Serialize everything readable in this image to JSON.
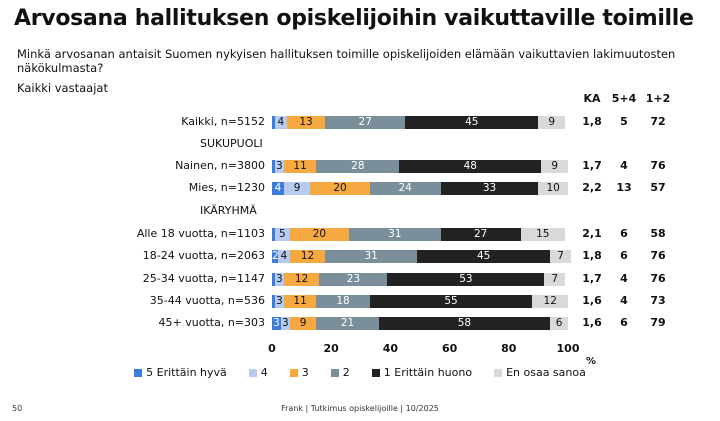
{
  "title": "Arvosana hallituksen opiskelijoihin vaikuttaville toimille",
  "subtitle": "Minkä arvosanan antaisit Suomen nykyisen hallituksen toimille opiskelijoiden elämään vaikuttavien lakimuutosten näkökulmasta?",
  "scope": "Kaikki vastaajat",
  "footer": {
    "page": "50",
    "source": "Frank | Tutkimus opiskelijoille | 10/2025"
  },
  "chart_data": {
    "type": "bar",
    "orientation": "horizontal-stacked-100",
    "xlabel": "%",
    "xlim": [
      0,
      100
    ],
    "xticks": [
      "0",
      "20",
      "40",
      "60",
      "80",
      "100"
    ],
    "stat_headers": [
      "KA",
      "5+4",
      "1+2"
    ],
    "series": [
      {
        "name": "5 Erittäin hyvä",
        "color": "#3b7ddd"
      },
      {
        "name": "4",
        "color": "#b6cbef"
      },
      {
        "name": "3",
        "color": "#f7a941"
      },
      {
        "name": "2",
        "color": "#7a8f99"
      },
      {
        "name": "1 Erittäin huono",
        "color": "#222222"
      },
      {
        "name": "En osaa sanoa",
        "color": "#d9d9d9"
      }
    ],
    "rows": [
      {
        "label": "Kaikki, n=5152",
        "values": [
          1,
          4,
          13,
          27,
          45,
          9
        ],
        "stats": [
          "1,8",
          "5",
          "72"
        ]
      },
      {
        "group": "SUKUPUOLI"
      },
      {
        "label": "Nainen, n=3800",
        "values": [
          1,
          3,
          11,
          28,
          48,
          9
        ],
        "stats": [
          "1,7",
          "4",
          "76"
        ]
      },
      {
        "label": "Mies, n=1230",
        "values": [
          4,
          9,
          20,
          24,
          33,
          10
        ],
        "stats": [
          "2,2",
          "13",
          "57"
        ]
      },
      {
        "group": "IKÄRYHMÄ"
      },
      {
        "label": "Alle 18 vuotta, n=1103",
        "values": [
          1,
          5,
          20,
          31,
          27,
          15
        ],
        "stats": [
          "2,1",
          "6",
          "58"
        ]
      },
      {
        "label": "18-24 vuotta, n=2063",
        "values": [
          2,
          4,
          12,
          31,
          45,
          7
        ],
        "stats": [
          "1,8",
          "6",
          "76"
        ]
      },
      {
        "label": "25-34 vuotta, n=1147",
        "values": [
          1,
          3,
          12,
          23,
          53,
          7
        ],
        "stats": [
          "1,7",
          "4",
          "76"
        ]
      },
      {
        "label": "35-44 vuotta, n=536",
        "values": [
          1,
          3,
          11,
          18,
          55,
          12
        ],
        "stats": [
          "1,6",
          "4",
          "73"
        ]
      },
      {
        "label": "45+ vuotta, n=303",
        "values": [
          3,
          3,
          9,
          21,
          58,
          6
        ],
        "stats": [
          "1,6",
          "6",
          "79"
        ]
      }
    ]
  }
}
